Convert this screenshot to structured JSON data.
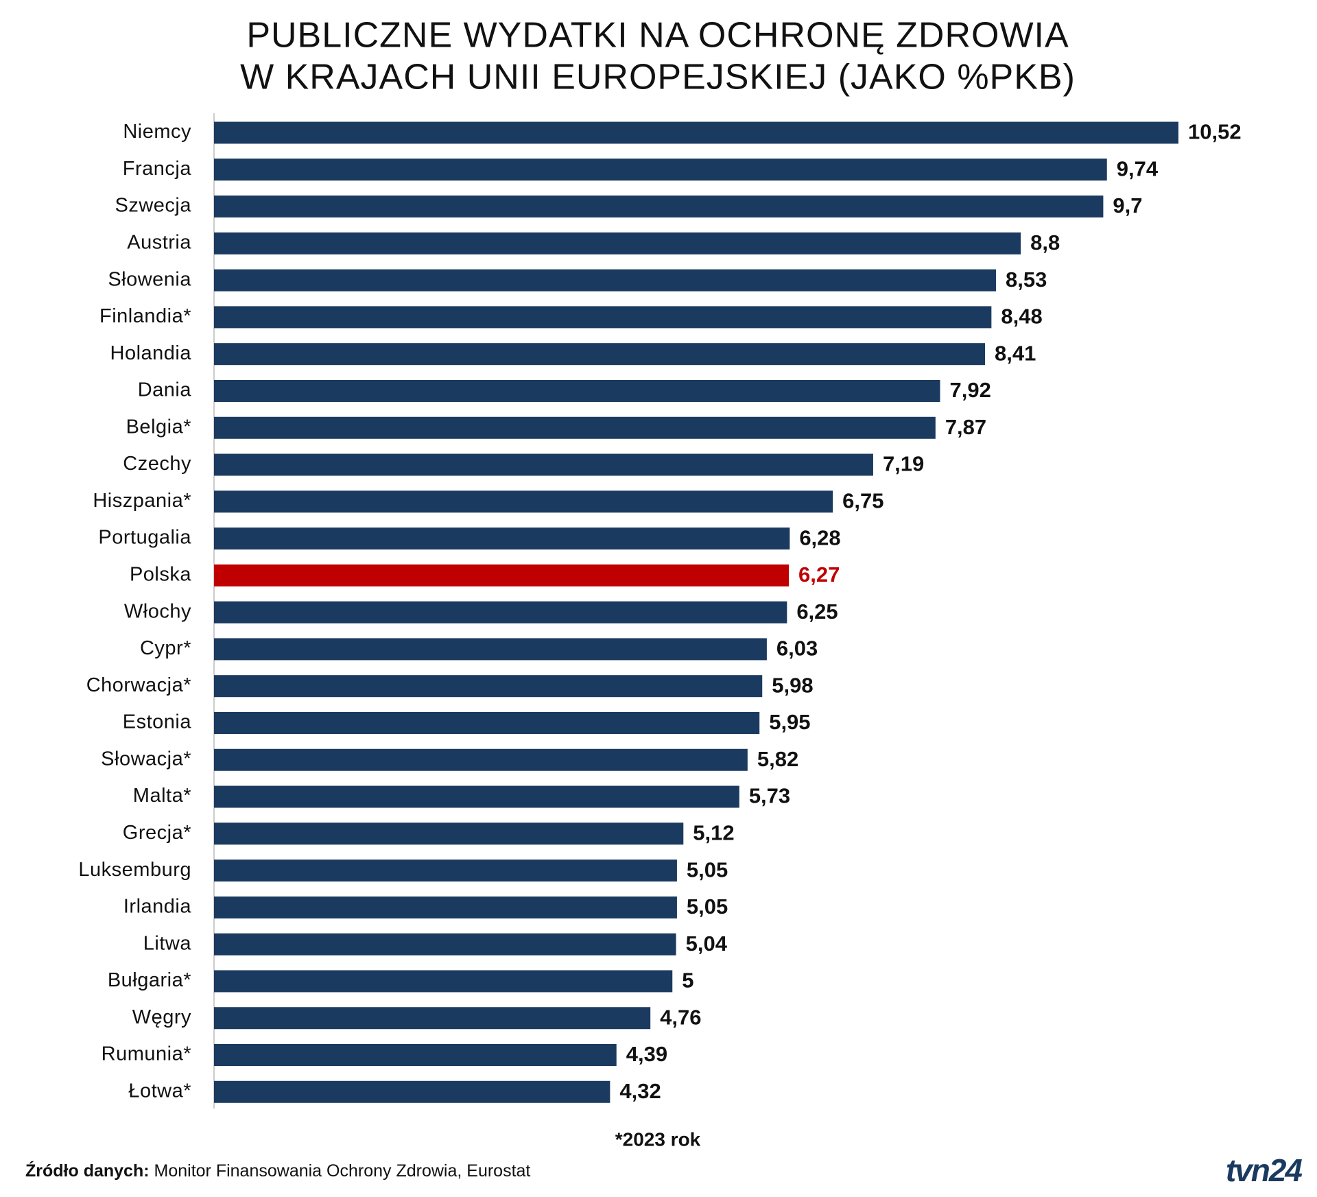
{
  "chart_data": {
    "type": "hbar",
    "title_lines": [
      "PUBLICZNE WYDATKI NA OCHRONĘ ZDROWIA",
      "W KRAJACH UNII EUROPEJSKIEJ (JAKO %PKB)"
    ],
    "categories": [
      "Niemcy",
      "Francja",
      "Szwecja",
      "Austria",
      "Słowenia",
      "Finlandia*",
      "Holandia",
      "Dania",
      "Belgia*",
      "Czechy",
      "Hiszpania*",
      "Portugalia",
      "Polska",
      "Włochy",
      "Cypr*",
      "Chorwacja*",
      "Estonia",
      "Słowacja*",
      "Malta*",
      "Grecja*",
      "Luksemburg",
      "Irlandia",
      "Litwa",
      "Bułgaria*",
      "Węgry",
      "Rumunia*",
      "Łotwa*"
    ],
    "values": [
      10.52,
      9.74,
      9.7,
      8.8,
      8.53,
      8.48,
      8.41,
      7.92,
      7.87,
      7.19,
      6.75,
      6.28,
      6.27,
      6.25,
      6.03,
      5.98,
      5.95,
      5.82,
      5.73,
      5.12,
      5.05,
      5.05,
      5.04,
      5,
      4.76,
      4.39,
      4.32
    ],
    "value_labels": [
      "10,52",
      "9,74",
      "9,7",
      "8,8",
      "8,53",
      "8,48",
      "8,41",
      "7,92",
      "7,87",
      "7,19",
      "6,75",
      "6,28",
      "6,27",
      "6,25",
      "6,03",
      "5,98",
      "5,95",
      "5,82",
      "5,73",
      "5,12",
      "5,05",
      "5,05",
      "5,04",
      "5",
      "4,76",
      "4,39",
      "4,32"
    ],
    "bar_color": "#1b3a5f",
    "colors": [
      "#1b3a5f",
      "#1b3a5f",
      "#1b3a5f",
      "#1b3a5f",
      "#1b3a5f",
      "#1b3a5f",
      "#1b3a5f",
      "#1b3a5f",
      "#1b3a5f",
      "#1b3a5f",
      "#1b3a5f",
      "#1b3a5f",
      "#c00000",
      "#1b3a5f",
      "#1b3a5f",
      "#1b3a5f",
      "#1b3a5f",
      "#1b3a5f",
      "#1b3a5f",
      "#1b3a5f",
      "#1b3a5f",
      "#1b3a5f",
      "#1b3a5f",
      "#1b3a5f",
      "#1b3a5f",
      "#1b3a5f",
      "#1b3a5f"
    ],
    "footnote": "*2023 rok",
    "source_label": "Źródło danych:",
    "source": "Monitor Finansowania Ochrony Zdrowia, Eurostat",
    "logo": "tvn24"
  }
}
